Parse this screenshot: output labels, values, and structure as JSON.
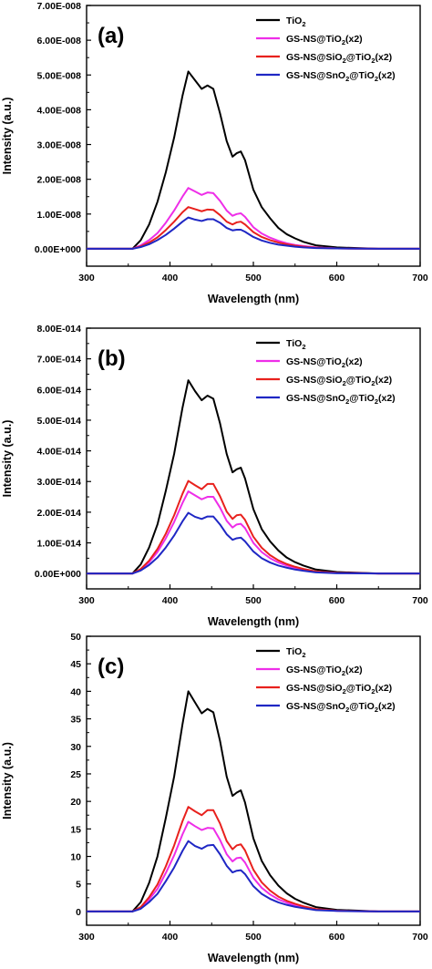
{
  "chart_data": [
    {
      "type": "line",
      "panel_label": "(a)",
      "xlabel": "Wavelength (nm)",
      "ylabel": "Intensity (a.u.)",
      "xlim": [
        300,
        700
      ],
      "ylim": [
        -5e-09,
        7e-08
      ],
      "xticks": [
        300,
        400,
        500,
        600,
        700
      ],
      "xtick_labels": [
        "300",
        "400",
        "500",
        "600",
        "700"
      ],
      "yticks": [
        0,
        1e-08,
        2e-08,
        3e-08,
        4e-08,
        5e-08,
        6e-08,
        7e-08
      ],
      "ytick_labels": [
        "0.00E+000",
        "1.00E-008",
        "2.00E-008",
        "3.00E-008",
        "4.00E-008",
        "5.00E-008",
        "6.00E-008",
        "7.00E-008"
      ],
      "grid": false,
      "legend_position": "top-right",
      "x": [
        300,
        355,
        365,
        375,
        385,
        395,
        405,
        415,
        422,
        430,
        438,
        445,
        452,
        460,
        468,
        475,
        480,
        485,
        490,
        500,
        510,
        520,
        530,
        540,
        550,
        560,
        575,
        600,
        650,
        700
      ],
      "series": [
        {
          "name": "TiO2",
          "color": "#000000",
          "values": [
            0,
            0,
            2.5e-09,
            7e-09,
            1.35e-08,
            2.2e-08,
            3.2e-08,
            4.4e-08,
            5.1e-08,
            4.85e-08,
            4.6e-08,
            4.7e-08,
            4.6e-08,
            3.9e-08,
            3.1e-08,
            2.65e-08,
            2.75e-08,
            2.8e-08,
            2.55e-08,
            1.7e-08,
            1.2e-08,
            8.8e-09,
            6e-09,
            4.2e-09,
            3e-09,
            2e-09,
            1e-09,
            4e-10,
            0,
            0
          ]
        },
        {
          "name": "GS-NS@TiO2(x2)",
          "color": "#ee2ee8",
          "values": [
            0,
            0,
            1e-09,
            2.5e-09,
            4.5e-09,
            7.5e-09,
            1.1e-08,
            1.5e-08,
            1.75e-08,
            1.65e-08,
            1.55e-08,
            1.62e-08,
            1.6e-08,
            1.38e-08,
            1.1e-08,
            9.5e-09,
            1e-08,
            1.02e-08,
            9.2e-09,
            6.2e-09,
            4.4e-09,
            3.2e-09,
            2.3e-09,
            1.6e-09,
            1.1e-09,
            8e-10,
            4e-10,
            1e-10,
            0,
            0
          ]
        },
        {
          "name": "GS-NS@SiO2@TiO2(x2)",
          "color": "#e8211d",
          "values": [
            0,
            0,
            7e-10,
            1.8e-09,
            3.3e-09,
            5.4e-09,
            7.8e-09,
            1.05e-08,
            1.2e-08,
            1.14e-08,
            1.08e-08,
            1.13e-08,
            1.12e-08,
            9.7e-09,
            7.8e-09,
            7e-09,
            7.6e-09,
            7.8e-09,
            7e-09,
            4.8e-09,
            3.4e-09,
            2.5e-09,
            1.8e-09,
            1.3e-09,
            9e-10,
            6e-10,
            3e-10,
            1e-10,
            0,
            0
          ]
        },
        {
          "name": "GS-NS@SnO2@TiO2(x2)",
          "color": "#1f27c4",
          "values": [
            0,
            0,
            5e-10,
            1.3e-09,
            2.5e-09,
            4e-09,
            5.8e-09,
            7.8e-09,
            9e-09,
            8.4e-09,
            8e-09,
            8.5e-09,
            8.5e-09,
            7.5e-09,
            6e-09,
            5.3e-09,
            5.5e-09,
            5.5e-09,
            4.9e-09,
            3.4e-09,
            2.4e-09,
            1.7e-09,
            1.2e-09,
            9e-10,
            6e-10,
            4e-10,
            2e-10,
            1e-10,
            0,
            0
          ]
        }
      ]
    },
    {
      "type": "line",
      "panel_label": "(b)",
      "xlabel": "Wavelength (nm)",
      "ylabel": "Intensity (a.u.)",
      "xlim": [
        300,
        700
      ],
      "ylim": [
        -5e-15,
        8e-14
      ],
      "xticks": [
        300,
        400,
        500,
        600,
        700
      ],
      "xtick_labels": [
        "300",
        "400",
        "500",
        "600",
        "700"
      ],
      "yticks": [
        0,
        1e-14,
        2e-14,
        3e-14,
        4e-14,
        5e-14,
        6e-14,
        7e-14,
        8e-14
      ],
      "ytick_labels": [
        "0.00E+000",
        "1.00E-014",
        "2.00E-014",
        "3.00E-014",
        "4.00E-014",
        "5.00E-014",
        "6.00E-014",
        "7.00E-014",
        "8.00E-014"
      ],
      "grid": false,
      "legend_position": "top-right",
      "x": [
        300,
        355,
        365,
        375,
        385,
        395,
        405,
        415,
        422,
        430,
        438,
        445,
        452,
        460,
        468,
        475,
        480,
        485,
        490,
        500,
        510,
        520,
        530,
        540,
        550,
        560,
        575,
        600,
        650,
        700
      ],
      "series": [
        {
          "name": "TiO2",
          "color": "#000000",
          "values": [
            0,
            0,
            3e-15,
            8.5e-15,
            1.6e-14,
            2.7e-14,
            3.9e-14,
            5.4e-14,
            6.3e-14,
            5.95e-14,
            5.65e-14,
            5.8e-14,
            5.7e-14,
            4.9e-14,
            3.9e-14,
            3.3e-14,
            3.4e-14,
            3.45e-14,
            3.1e-14,
            2.1e-14,
            1.45e-14,
            1.05e-14,
            7.5e-15,
            5.2e-15,
            3.7e-15,
            2.6e-15,
            1.3e-15,
            5e-16,
            0,
            0
          ]
        },
        {
          "name": "GS-NS@TiO2(x2)",
          "color": "#ee2ee8",
          "values": [
            0,
            0,
            1.3e-15,
            3.7e-15,
            7e-15,
            1.15e-14,
            1.68e-14,
            2.3e-14,
            2.68e-14,
            2.55e-14,
            2.42e-14,
            2.5e-14,
            2.5e-14,
            2.15e-14,
            1.72e-14,
            1.5e-14,
            1.6e-14,
            1.62e-14,
            1.48e-14,
            1e-14,
            7e-15,
            5e-15,
            3.6e-15,
            2.6e-15,
            1.8e-15,
            1.3e-15,
            6e-16,
            2e-16,
            0,
            0
          ]
        },
        {
          "name": "GS-NS@SiO2@TiO2(x2)",
          "color": "#e8211d",
          "values": [
            0,
            0,
            1.5e-15,
            4.2e-15,
            8e-15,
            1.3e-14,
            1.9e-14,
            2.6e-14,
            3.02e-14,
            2.88e-14,
            2.75e-14,
            2.92e-14,
            2.92e-14,
            2.52e-14,
            2.02e-14,
            1.78e-14,
            1.9e-14,
            1.92e-14,
            1.75e-14,
            1.2e-14,
            8.4e-15,
            6e-15,
            4.3e-15,
            3.1e-15,
            2.2e-15,
            1.5e-15,
            7e-16,
            2e-16,
            0,
            0
          ]
        },
        {
          "name": "GS-NS@SnO2@TiO2(x2)",
          "color": "#1f27c4",
          "values": [
            0,
            0,
            1e-15,
            2.8e-15,
            5.2e-15,
            8.5e-15,
            1.24e-14,
            1.7e-14,
            1.98e-14,
            1.85e-14,
            1.78e-14,
            1.86e-14,
            1.86e-14,
            1.6e-14,
            1.28e-14,
            1.1e-14,
            1.15e-14,
            1.17e-14,
            1.05e-14,
            7.2e-15,
            5e-15,
            3.6e-15,
            2.6e-15,
            1.9e-15,
            1.3e-15,
            9e-16,
            4e-16,
            1e-16,
            0,
            0
          ]
        }
      ]
    },
    {
      "type": "line",
      "panel_label": "(c)",
      "xlabel": "Wavelength (nm)",
      "ylabel": "Intensity (a.u.)",
      "xlim": [
        300,
        700
      ],
      "ylim": [
        -2.5,
        50
      ],
      "xticks": [
        300,
        400,
        500,
        600,
        700
      ],
      "xtick_labels": [
        "300",
        "400",
        "500",
        "600",
        "700"
      ],
      "yticks": [
        0,
        5,
        10,
        15,
        20,
        25,
        30,
        35,
        40,
        45,
        50
      ],
      "ytick_labels": [
        "0",
        "5",
        "10",
        "15",
        "20",
        "25",
        "30",
        "35",
        "40",
        "45",
        "50"
      ],
      "grid": false,
      "legend_position": "top-right",
      "x": [
        300,
        355,
        365,
        375,
        385,
        395,
        405,
        415,
        422,
        430,
        438,
        445,
        452,
        460,
        468,
        475,
        480,
        485,
        490,
        500,
        510,
        520,
        530,
        540,
        550,
        560,
        575,
        600,
        650,
        700
      ],
      "series": [
        {
          "name": "TiO2",
          "color": "#000000",
          "values": [
            0,
            0,
            1.7,
            5.2,
            10,
            17,
            24.5,
            34,
            40,
            38,
            36,
            36.8,
            36.2,
            31,
            24.5,
            21,
            21.6,
            22,
            19.8,
            13.3,
            9.2,
            6.6,
            4.7,
            3.3,
            2.3,
            1.6,
            0.8,
            0.3,
            0,
            0
          ]
        },
        {
          "name": "GS-NS@TiO2(x2)",
          "color": "#ee2ee8",
          "values": [
            0,
            0,
            0.7,
            2.2,
            4.1,
            7,
            10.2,
            14,
            16.3,
            15.5,
            14.8,
            15.2,
            15.1,
            13,
            10.4,
            9.1,
            9.7,
            9.8,
            8.9,
            6.1,
            4.3,
            3.1,
            2.2,
            1.6,
            1.1,
            0.8,
            0.4,
            0.1,
            0,
            0
          ]
        },
        {
          "name": "GS-NS@SiO2@TiO2(x2)",
          "color": "#e8211d",
          "values": [
            0,
            0,
            0.8,
            2.6,
            4.9,
            8.2,
            12,
            16.4,
            19,
            18.2,
            17.5,
            18.4,
            18.4,
            16,
            12.8,
            11.3,
            12,
            12.2,
            11.1,
            7.6,
            5.3,
            3.8,
            2.7,
            1.95,
            1.4,
            0.95,
            0.45,
            0.15,
            0,
            0
          ]
        },
        {
          "name": "GS-NS@SnO2@TiO2(x2)",
          "color": "#1f27c4",
          "values": [
            0,
            0,
            0.5,
            1.7,
            3.2,
            5.5,
            8,
            11,
            12.8,
            11.9,
            11.4,
            12,
            12.1,
            10.4,
            8.3,
            7.1,
            7.4,
            7.5,
            6.8,
            4.6,
            3.2,
            2.3,
            1.65,
            1.2,
            0.85,
            0.6,
            0.25,
            0.1,
            0,
            0
          ]
        }
      ]
    }
  ]
}
